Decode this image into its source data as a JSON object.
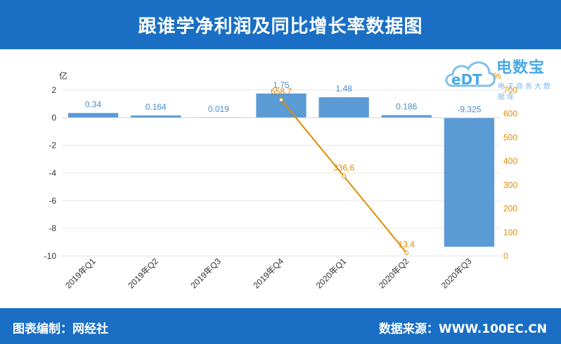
{
  "header": {
    "title": "跟谁学净利润及同比增长率数据图"
  },
  "footer": {
    "left": "图表编制：网经社",
    "right": "数据来源：WWW.100EC.CN"
  },
  "watermark": {
    "main": "电数宝",
    "sub": "电子商务大数据库",
    "mark": "eDT",
    "color": "#49a9e6"
  },
  "chart_data": {
    "type": "bar",
    "categories": [
      "2019年Q1",
      "2019年Q2",
      "2019年Q3",
      "2019年Q4",
      "2020年Q1",
      "2020年Q2",
      "2020年Q3"
    ],
    "left_axis": {
      "unit_label": "亿",
      "ylim": [
        -10,
        2
      ],
      "ticks": [
        "2",
        "0",
        "-2",
        "-4",
        "-6",
        "-8",
        "-10"
      ]
    },
    "right_axis": {
      "unit_label": "%",
      "ylim": [
        0,
        700
      ],
      "ticks": [
        "700",
        "600",
        "500",
        "400",
        "300",
        "200",
        "100",
        "0"
      ]
    },
    "series": [
      {
        "type": "bar",
        "axis": "left",
        "color": "#5b9bd5",
        "values": [
          0.34,
          0.164,
          0.019,
          1.75,
          1.48,
          0.186,
          -9.325
        ],
        "labels": [
          "0.34",
          "0.164",
          "0.019",
          "1.75",
          "1.48",
          "0.186",
          "-9.325"
        ]
      },
      {
        "type": "line",
        "axis": "right",
        "color": "#e08a00",
        "points": [
          {
            "category": "2019年Q4",
            "value": 658.7,
            "label": "658.7"
          },
          {
            "category": "2020年Q1",
            "value": 336.6,
            "label": "336.6"
          },
          {
            "category": "2020年Q2",
            "value": 13.4,
            "label": "13.4"
          }
        ]
      }
    ],
    "grid": true,
    "legend": "none"
  }
}
